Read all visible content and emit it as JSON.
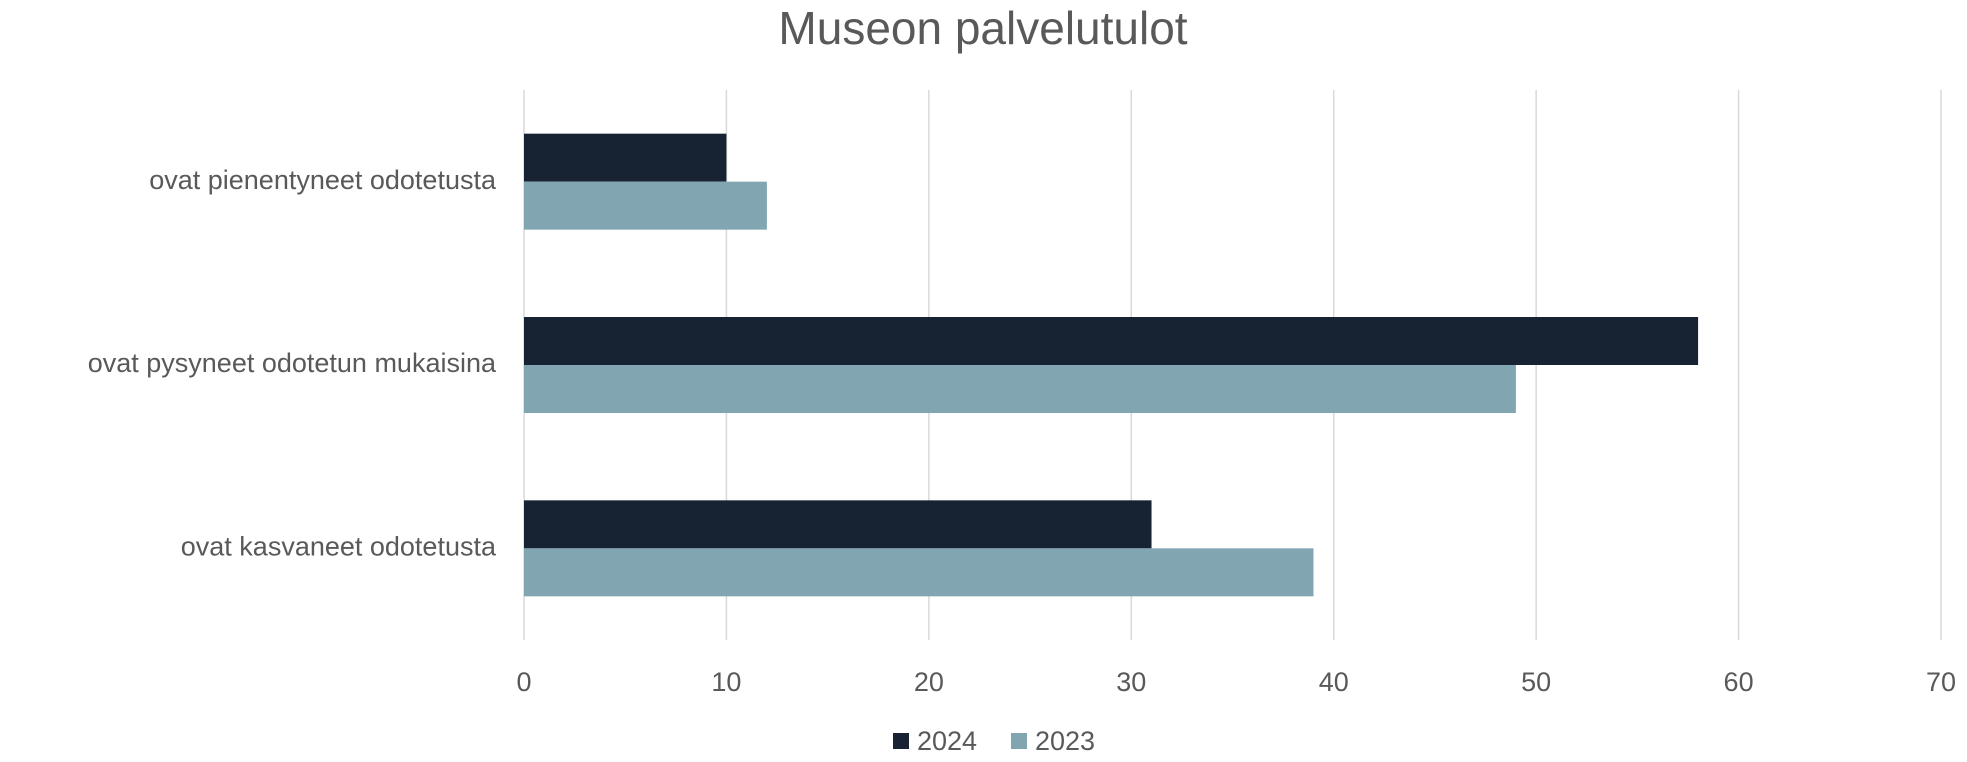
{
  "chart_data": {
    "type": "bar",
    "orientation": "horizontal",
    "title": "Museon palvelutulot",
    "categories": [
      "ovat pienentyneet odotetusta",
      "ovat pysyneet odotetun mukaisina",
      "ovat kasvaneet odotetusta"
    ],
    "series": [
      {
        "name": "2024",
        "color": "#172333",
        "values": [
          10,
          58,
          31
        ]
      },
      {
        "name": "2023",
        "color": "#82a6b1",
        "values": [
          12,
          49,
          39
        ]
      }
    ],
    "xlim": [
      0,
      70
    ],
    "xticks": [
      0,
      10,
      20,
      30,
      40,
      50,
      60,
      70
    ],
    "grid": true,
    "legend": "bottom"
  }
}
